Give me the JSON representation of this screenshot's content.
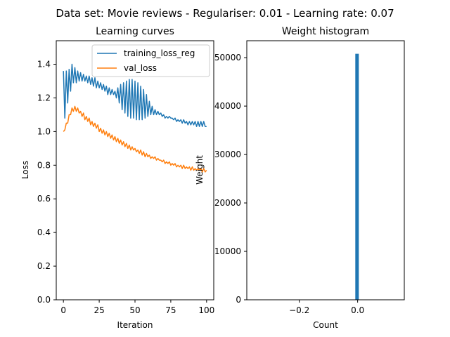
{
  "figure": {
    "suptitle": "Data set: Movie reviews - Regulariser: 0.01 - Learning rate: 0.07"
  },
  "chart_data": [
    {
      "type": "line",
      "title": "Learning curves",
      "xlabel": "Iteration",
      "ylabel": "Loss",
      "xlim": [
        -5,
        105
      ],
      "ylim": [
        0.0,
        1.54
      ],
      "xticks": [
        0,
        25,
        50,
        75,
        100
      ],
      "xtick_labels": [
        "0",
        "25",
        "50",
        "75",
        "100"
      ],
      "yticks": [
        0.0,
        0.2,
        0.4,
        0.6,
        0.8,
        1.0,
        1.2,
        1.4
      ],
      "ytick_labels": [
        "0.0",
        "0.2",
        "0.4",
        "0.6",
        "0.8",
        "1.0",
        "1.2",
        "1.4"
      ],
      "grid": false,
      "legend": "top-right",
      "series": [
        {
          "name": "training_loss_reg",
          "color": "#1f77b4",
          "x": [
            0,
            1,
            2,
            3,
            4,
            5,
            6,
            7,
            8,
            9,
            10,
            11,
            12,
            13,
            14,
            15,
            16,
            17,
            18,
            19,
            20,
            21,
            22,
            23,
            24,
            25,
            26,
            27,
            28,
            29,
            30,
            31,
            32,
            33,
            34,
            35,
            36,
            37,
            38,
            39,
            40,
            41,
            42,
            43,
            44,
            45,
            46,
            47,
            48,
            49,
            50,
            51,
            52,
            53,
            54,
            55,
            56,
            57,
            58,
            59,
            60,
            61,
            62,
            63,
            64,
            65,
            66,
            67,
            68,
            69,
            70,
            71,
            72,
            73,
            74,
            75,
            76,
            77,
            78,
            79,
            80,
            81,
            82,
            83,
            84,
            85,
            86,
            87,
            88,
            89,
            90,
            91,
            92,
            93,
            94,
            95,
            96,
            97,
            98,
            99,
            100
          ],
          "values": [
            1.36,
            1.08,
            1.36,
            1.17,
            1.37,
            1.24,
            1.4,
            1.29,
            1.38,
            1.29,
            1.36,
            1.3,
            1.35,
            1.3,
            1.34,
            1.3,
            1.33,
            1.29,
            1.33,
            1.28,
            1.32,
            1.27,
            1.32,
            1.26,
            1.3,
            1.26,
            1.29,
            1.25,
            1.28,
            1.24,
            1.27,
            1.22,
            1.26,
            1.22,
            1.25,
            1.22,
            1.24,
            1.2,
            1.26,
            1.17,
            1.28,
            1.13,
            1.29,
            1.11,
            1.3,
            1.09,
            1.31,
            1.08,
            1.31,
            1.08,
            1.3,
            1.07,
            1.29,
            1.07,
            1.27,
            1.07,
            1.25,
            1.08,
            1.22,
            1.09,
            1.18,
            1.1,
            1.15,
            1.1,
            1.13,
            1.1,
            1.12,
            1.1,
            1.11,
            1.09,
            1.1,
            1.08,
            1.09,
            1.08,
            1.09,
            1.08,
            1.08,
            1.07,
            1.08,
            1.06,
            1.07,
            1.06,
            1.07,
            1.05,
            1.07,
            1.05,
            1.06,
            1.04,
            1.06,
            1.04,
            1.06,
            1.04,
            1.06,
            1.03,
            1.06,
            1.03,
            1.06,
            1.03,
            1.06,
            1.03,
            1.03
          ]
        },
        {
          "name": "val_loss",
          "color": "#ff7f0e",
          "x": [
            0,
            1,
            2,
            3,
            4,
            5,
            6,
            7,
            8,
            9,
            10,
            11,
            12,
            13,
            14,
            15,
            16,
            17,
            18,
            19,
            20,
            21,
            22,
            23,
            24,
            25,
            26,
            27,
            28,
            29,
            30,
            31,
            32,
            33,
            34,
            35,
            36,
            37,
            38,
            39,
            40,
            41,
            42,
            43,
            44,
            45,
            46,
            47,
            48,
            49,
            50,
            51,
            52,
            53,
            54,
            55,
            56,
            57,
            58,
            59,
            60,
            61,
            62,
            63,
            64,
            65,
            66,
            67,
            68,
            69,
            70,
            71,
            72,
            73,
            74,
            75,
            76,
            77,
            78,
            79,
            80,
            81,
            82,
            83,
            84,
            85,
            86,
            87,
            88,
            89,
            90,
            91,
            92,
            93,
            94,
            95,
            96,
            97,
            98,
            99,
            100
          ],
          "values": [
            1.0,
            1.01,
            1.05,
            1.05,
            1.1,
            1.1,
            1.14,
            1.12,
            1.15,
            1.12,
            1.14,
            1.11,
            1.12,
            1.09,
            1.11,
            1.07,
            1.09,
            1.06,
            1.08,
            1.04,
            1.06,
            1.03,
            1.05,
            1.02,
            1.04,
            1.0,
            1.02,
            0.99,
            1.01,
            0.98,
            1.0,
            0.97,
            0.99,
            0.96,
            0.98,
            0.95,
            0.97,
            0.94,
            0.96,
            0.93,
            0.95,
            0.92,
            0.94,
            0.91,
            0.93,
            0.9,
            0.92,
            0.89,
            0.91,
            0.89,
            0.9,
            0.88,
            0.89,
            0.87,
            0.89,
            0.86,
            0.88,
            0.85,
            0.87,
            0.85,
            0.86,
            0.84,
            0.85,
            0.84,
            0.85,
            0.83,
            0.84,
            0.83,
            0.83,
            0.82,
            0.83,
            0.81,
            0.82,
            0.81,
            0.82,
            0.8,
            0.81,
            0.8,
            0.81,
            0.79,
            0.8,
            0.79,
            0.8,
            0.78,
            0.8,
            0.78,
            0.79,
            0.78,
            0.79,
            0.77,
            0.79,
            0.77,
            0.78,
            0.77,
            0.78,
            0.77,
            0.78,
            0.76,
            0.78,
            0.76,
            0.77
          ]
        }
      ]
    },
    {
      "type": "bar",
      "title": "Weight histogram",
      "xlabel": "Count",
      "ylabel": "Weight",
      "xlim": [
        -0.38,
        0.16
      ],
      "ylim": [
        0,
        53500
      ],
      "xticks": [
        -0.2,
        0.0
      ],
      "xtick_labels": [
        "−0.2",
        "0.0"
      ],
      "yticks": [
        0,
        10000,
        20000,
        30000,
        40000,
        50000
      ],
      "ytick_labels": [
        "0",
        "10000",
        "20000",
        "30000",
        "40000",
        "50000"
      ],
      "grid": false,
      "color": "#1f77b4",
      "bins": [
        {
          "x0": -0.008,
          "x1": 0.004,
          "value": 50800
        }
      ]
    }
  ]
}
